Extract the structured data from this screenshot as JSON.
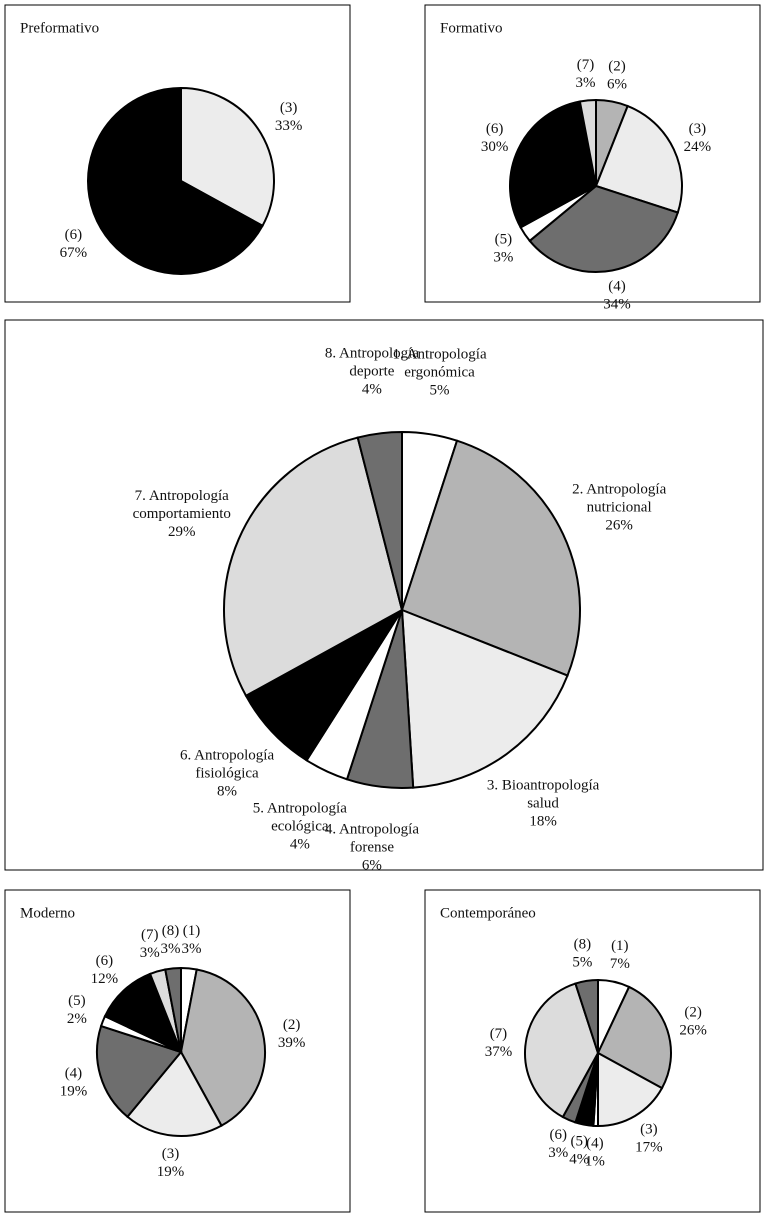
{
  "chart_data": [
    {
      "type": "pie",
      "title": "Preformativo",
      "categories": [
        [
          "(3)"
        ],
        [
          "(6)"
        ]
      ],
      "values": [
        33,
        67
      ],
      "value_labels": [
        "33%",
        "67%"
      ],
      "colors": [
        "#ececec",
        "#000000"
      ]
    },
    {
      "type": "pie",
      "title": "Formativo",
      "categories": [
        [
          "(2)"
        ],
        [
          "(3)"
        ],
        [
          "(4)"
        ],
        [
          "(5)"
        ],
        [
          "(6)"
        ],
        [
          "(7)"
        ]
      ],
      "values": [
        6,
        24,
        34,
        3,
        30,
        3
      ],
      "value_labels": [
        "6%",
        "24%",
        "34%",
        "3%",
        "30%",
        "3%"
      ],
      "colors": [
        "#b4b4b4",
        "#ececec",
        "#6e6e6e",
        "#ffffff",
        "#000000",
        "#dcdcdc"
      ]
    },
    {
      "type": "pie",
      "categories": [
        [
          "1. Antropología",
          "ergonómica"
        ],
        [
          "2. Antropología",
          "nutricional"
        ],
        [
          "3. Bioantropología",
          "salud"
        ],
        [
          "4. Antropología",
          "forense"
        ],
        [
          "5. Antropología",
          "ecológica"
        ],
        [
          "6. Antropología",
          "fisiológica"
        ],
        [
          "7. Antropología",
          "comportamiento"
        ],
        [
          "8. Antropología",
          "deporte"
        ]
      ],
      "values": [
        5,
        26,
        18,
        6,
        4,
        8,
        29,
        4
      ],
      "value_labels": [
        "5%",
        "26%",
        "18%",
        "6%",
        "4%",
        "8%",
        "29%",
        "4%"
      ],
      "colors": [
        "#ffffff",
        "#b4b4b4",
        "#ececec",
        "#6e6e6e",
        "#ffffff",
        "#000000",
        "#dcdcdc",
        "#6e6e6e"
      ]
    },
    {
      "type": "pie",
      "title": "Moderno",
      "categories": [
        [
          "(1)"
        ],
        [
          "(2)"
        ],
        [
          "(3)"
        ],
        [
          "(4)"
        ],
        [
          "(5)"
        ],
        [
          "(6)"
        ],
        [
          "(7)"
        ],
        [
          "(8)"
        ]
      ],
      "values": [
        3,
        39,
        19,
        19,
        2,
        12,
        3,
        3
      ],
      "value_labels": [
        "3%",
        "39%",
        "19%",
        "19%",
        "2%",
        "12%",
        "3%",
        "3%"
      ],
      "colors": [
        "#ffffff",
        "#b4b4b4",
        "#ececec",
        "#6e6e6e",
        "#ffffff",
        "#000000",
        "#dcdcdc",
        "#6e6e6e"
      ]
    },
    {
      "type": "pie",
      "title": "Contemporáneo",
      "categories": [
        [
          "(1)"
        ],
        [
          "(2)"
        ],
        [
          "(3)"
        ],
        [
          "(4)"
        ],
        [
          "(5)"
        ],
        [
          "(6)"
        ],
        [
          "(7)"
        ],
        [
          "(8)"
        ]
      ],
      "values": [
        7,
        26,
        17,
        1,
        4,
        3,
        37,
        5
      ],
      "value_labels": [
        "7%",
        "26%",
        "17%",
        "1%",
        "4%",
        "3%",
        "37%",
        "5%"
      ],
      "colors": [
        "#ffffff",
        "#b4b4b4",
        "#ececec",
        "#ffffff",
        "#000000",
        "#6e6e6e",
        "#dcdcdc",
        "#6e6e6e"
      ]
    }
  ]
}
